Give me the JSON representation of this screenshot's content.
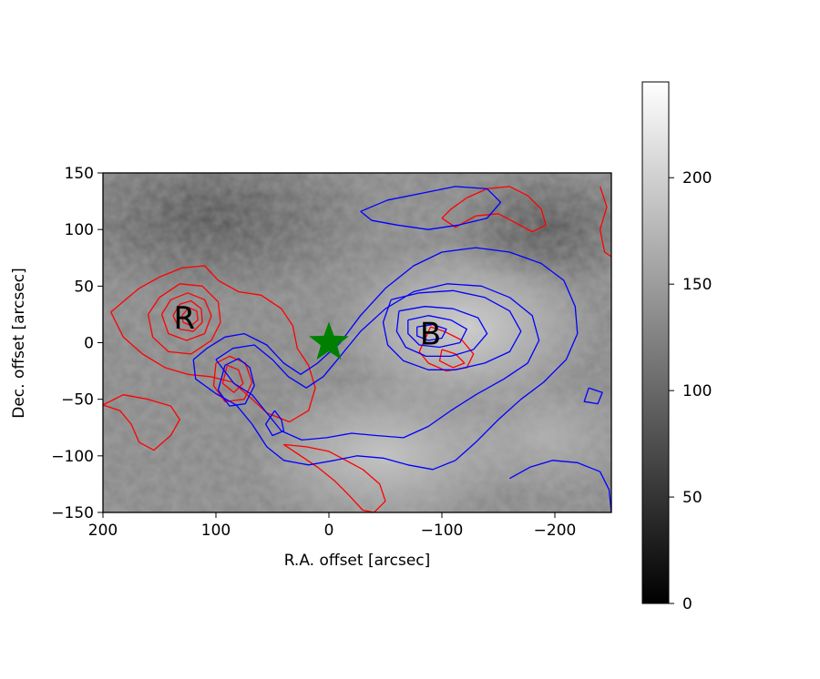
{
  "chart_data": {
    "type": "heatmap",
    "title": "",
    "xlabel": "R.A. offset [arcsec]",
    "ylabel": "Dec. offset [arcsec]",
    "xlim": [
      200,
      -250
    ],
    "ylim": [
      -150,
      150
    ],
    "x_ticks": [
      200,
      100,
      0,
      -100,
      -200
    ],
    "y_ticks": [
      -150,
      -100,
      -50,
      0,
      50,
      100,
      150
    ],
    "x_tick_labels": [
      "200",
      "100",
      "0",
      "−100",
      "−200"
    ],
    "y_tick_labels": [
      "−150",
      "−100",
      "−50",
      "0",
      "50",
      "100",
      "150"
    ],
    "colormap": "gray",
    "colorbar": {
      "range": [
        0,
        245
      ],
      "ticks": [
        0,
        50,
        100,
        150,
        200
      ],
      "tick_labels": [
        "0",
        "50",
        "100",
        "150",
        "200"
      ]
    },
    "annotations": [
      {
        "text": "R",
        "x": 128,
        "y": 22
      },
      {
        "text": "B",
        "x": -90,
        "y": 8
      }
    ],
    "source_marker": {
      "shape": "star",
      "x": 0,
      "y": 0,
      "color": "#008000"
    },
    "contour_colors": {
      "red": "#ff0000",
      "blue": "#0000ff"
    },
    "red_contours": [
      [
        [
          193,
          27
        ],
        [
          180,
          38
        ],
        [
          168,
          48
        ],
        [
          150,
          58
        ],
        [
          130,
          66
        ],
        [
          110,
          68
        ],
        [
          98,
          55
        ],
        [
          80,
          45
        ],
        [
          60,
          42
        ],
        [
          42,
          30
        ],
        [
          32,
          15
        ],
        [
          28,
          -5
        ],
        [
          18,
          -20
        ],
        [
          12,
          -40
        ],
        [
          18,
          -60
        ],
        [
          35,
          -70
        ],
        [
          55,
          -62
        ],
        [
          70,
          -48
        ],
        [
          85,
          -35
        ],
        [
          105,
          -30
        ],
        [
          125,
          -28
        ],
        [
          145,
          -22
        ],
        [
          165,
          -10
        ],
        [
          182,
          5
        ],
        [
          193,
          27
        ]
      ],
      [
        [
          160,
          25
        ],
        [
          150,
          40
        ],
        [
          132,
          52
        ],
        [
          112,
          50
        ],
        [
          98,
          36
        ],
        [
          96,
          18
        ],
        [
          104,
          2
        ],
        [
          122,
          -10
        ],
        [
          142,
          -8
        ],
        [
          156,
          5
        ],
        [
          160,
          25
        ]
      ],
      [
        [
          148,
          25
        ],
        [
          140,
          38
        ],
        [
          125,
          44
        ],
        [
          110,
          38
        ],
        [
          104,
          24
        ],
        [
          110,
          8
        ],
        [
          126,
          2
        ],
        [
          142,
          8
        ],
        [
          148,
          25
        ]
      ],
      [
        [
          138,
          24
        ],
        [
          132,
          34
        ],
        [
          122,
          37
        ],
        [
          113,
          30
        ],
        [
          112,
          18
        ],
        [
          120,
          10
        ],
        [
          132,
          12
        ],
        [
          138,
          24
        ]
      ],
      [
        [
          130,
          24
        ],
        [
          124,
          31
        ],
        [
          117,
          28
        ],
        [
          116,
          20
        ],
        [
          122,
          15
        ],
        [
          129,
          18
        ],
        [
          130,
          24
        ]
      ],
      [
        [
          100,
          -18
        ],
        [
          88,
          -12
        ],
        [
          74,
          -18
        ],
        [
          68,
          -35
        ],
        [
          75,
          -50
        ],
        [
          92,
          -52
        ],
        [
          102,
          -38
        ],
        [
          100,
          -18
        ]
      ],
      [
        [
          90,
          -20
        ],
        [
          80,
          -24
        ],
        [
          76,
          -36
        ],
        [
          84,
          -44
        ],
        [
          94,
          -36
        ],
        [
          90,
          -20
        ]
      ],
      [
        [
          200,
          -55
        ],
        [
          185,
          -60
        ],
        [
          175,
          -72
        ],
        [
          168,
          -88
        ],
        [
          155,
          -95
        ],
        [
          140,
          -82
        ],
        [
          132,
          -68
        ],
        [
          140,
          -56
        ],
        [
          160,
          -50
        ],
        [
          182,
          -46
        ],
        [
          200,
          -55
        ]
      ],
      [
        [
          40,
          -90
        ],
        [
          28,
          -98
        ],
        [
          10,
          -110
        ],
        [
          -5,
          -122
        ],
        [
          -18,
          -135
        ],
        [
          -30,
          -148
        ],
        [
          -40,
          -150
        ],
        [
          -50,
          -140
        ],
        [
          -45,
          -125
        ],
        [
          -30,
          -112
        ],
        [
          -15,
          -104
        ],
        [
          0,
          -96
        ],
        [
          20,
          -92
        ],
        [
          40,
          -90
        ]
      ],
      [
        [
          -90,
          14
        ],
        [
          -102,
          10
        ],
        [
          -118,
          2
        ],
        [
          -128,
          -10
        ],
        [
          -122,
          -22
        ],
        [
          -104,
          -25
        ],
        [
          -88,
          -18
        ],
        [
          -80,
          -8
        ],
        [
          -90,
          14
        ]
      ],
      [
        [
          -100,
          -6
        ],
        [
          -112,
          -10
        ],
        [
          -120,
          -18
        ],
        [
          -110,
          -22
        ],
        [
          -98,
          -16
        ],
        [
          -100,
          -6
        ]
      ],
      [
        [
          -100,
          110
        ],
        [
          -108,
          118
        ],
        [
          -122,
          128
        ],
        [
          -140,
          136
        ],
        [
          -160,
          138
        ],
        [
          -176,
          130
        ],
        [
          -188,
          118
        ],
        [
          -192,
          104
        ],
        [
          -180,
          98
        ],
        [
          -165,
          106
        ],
        [
          -150,
          114
        ],
        [
          -130,
          112
        ],
        [
          -112,
          102
        ],
        [
          -100,
          110
        ]
      ],
      [
        [
          -240,
          138
        ],
        [
          -246,
          120
        ],
        [
          -240,
          100
        ],
        [
          -244,
          80
        ],
        [
          -250,
          76
        ]
      ]
    ],
    "blue_contours": [
      [
        [
          120,
          -15
        ],
        [
          108,
          -5
        ],
        [
          92,
          5
        ],
        [
          75,
          8
        ],
        [
          55,
          -2
        ],
        [
          40,
          -18
        ],
        [
          25,
          -28
        ],
        [
          10,
          -18
        ],
        [
          -10,
          0
        ],
        [
          -28,
          24
        ],
        [
          -50,
          48
        ],
        [
          -75,
          68
        ],
        [
          -100,
          80
        ],
        [
          -130,
          84
        ],
        [
          -160,
          80
        ],
        [
          -188,
          70
        ],
        [
          -208,
          55
        ],
        [
          -218,
          32
        ],
        [
          -220,
          8
        ],
        [
          -210,
          -15
        ],
        [
          -190,
          -35
        ],
        [
          -170,
          -50
        ],
        [
          -150,
          -68
        ],
        [
          -130,
          -88
        ],
        [
          -112,
          -104
        ],
        [
          -92,
          -112
        ],
        [
          -70,
          -108
        ],
        [
          -48,
          -102
        ],
        [
          -25,
          -100
        ],
        [
          -5,
          -104
        ],
        [
          18,
          -108
        ],
        [
          40,
          -104
        ],
        [
          55,
          -92
        ],
        [
          68,
          -72
        ],
        [
          82,
          -55
        ],
        [
          100,
          -45
        ],
        [
          118,
          -32
        ],
        [
          120,
          -15
        ]
      ],
      [
        [
          100,
          -15
        ],
        [
          85,
          -5
        ],
        [
          66,
          -2
        ],
        [
          50,
          -15
        ],
        [
          36,
          -30
        ],
        [
          20,
          -40
        ],
        [
          5,
          -30
        ],
        [
          -10,
          -12
        ],
        [
          -28,
          10
        ],
        [
          -50,
          30
        ],
        [
          -75,
          45
        ],
        [
          -105,
          52
        ],
        [
          -135,
          50
        ],
        [
          -160,
          40
        ],
        [
          -180,
          24
        ],
        [
          -186,
          2
        ],
        [
          -176,
          -18
        ],
        [
          -155,
          -32
        ],
        [
          -130,
          -46
        ],
        [
          -108,
          -60
        ],
        [
          -88,
          -74
        ],
        [
          -66,
          -84
        ],
        [
          -42,
          -82
        ],
        [
          -20,
          -80
        ],
        [
          2,
          -84
        ],
        [
          24,
          -86
        ],
        [
          42,
          -78
        ],
        [
          55,
          -62
        ],
        [
          68,
          -46
        ],
        [
          84,
          -36
        ],
        [
          100,
          -15
        ]
      ],
      [
        [
          -55,
          38
        ],
        [
          -80,
          44
        ],
        [
          -110,
          46
        ],
        [
          -138,
          40
        ],
        [
          -160,
          28
        ],
        [
          -170,
          10
        ],
        [
          -160,
          -8
        ],
        [
          -138,
          -18
        ],
        [
          -112,
          -24
        ],
        [
          -88,
          -24
        ],
        [
          -66,
          -16
        ],
        [
          -52,
          -2
        ],
        [
          -48,
          18
        ],
        [
          -55,
          38
        ]
      ],
      [
        [
          -62,
          28
        ],
        [
          -85,
          32
        ],
        [
          -110,
          30
        ],
        [
          -132,
          22
        ],
        [
          -140,
          8
        ],
        [
          -128,
          -6
        ],
        [
          -108,
          -12
        ],
        [
          -86,
          -12
        ],
        [
          -68,
          -4
        ],
        [
          -60,
          10
        ],
        [
          -62,
          28
        ]
      ],
      [
        [
          -70,
          20
        ],
        [
          -88,
          24
        ],
        [
          -108,
          20
        ],
        [
          -122,
          12
        ],
        [
          -116,
          0
        ],
        [
          -98,
          -4
        ],
        [
          -80,
          -2
        ],
        [
          -70,
          8
        ],
        [
          -70,
          20
        ]
      ],
      [
        [
          -78,
          14
        ],
        [
          -92,
          16
        ],
        [
          -104,
          12
        ],
        [
          -100,
          4
        ],
        [
          -88,
          2
        ],
        [
          -78,
          6
        ],
        [
          -78,
          14
        ]
      ],
      [
        [
          92,
          -20
        ],
        [
          80,
          -14
        ],
        [
          70,
          -22
        ],
        [
          66,
          -38
        ],
        [
          74,
          -54
        ],
        [
          88,
          -56
        ],
        [
          98,
          -42
        ],
        [
          92,
          -20
        ]
      ],
      [
        [
          48,
          -60
        ],
        [
          42,
          -68
        ],
        [
          40,
          -78
        ],
        [
          50,
          -82
        ],
        [
          56,
          -72
        ],
        [
          48,
          -60
        ]
      ],
      [
        [
          -28,
          116
        ],
        [
          -52,
          126
        ],
        [
          -82,
          132
        ],
        [
          -112,
          138
        ],
        [
          -140,
          136
        ],
        [
          -152,
          124
        ],
        [
          -140,
          110
        ],
        [
          -115,
          104
        ],
        [
          -88,
          100
        ],
        [
          -60,
          104
        ],
        [
          -38,
          108
        ],
        [
          -28,
          116
        ]
      ],
      [
        [
          -160,
          -120
        ],
        [
          -178,
          -110
        ],
        [
          -198,
          -104
        ],
        [
          -220,
          -106
        ],
        [
          -240,
          -114
        ],
        [
          -248,
          -130
        ],
        [
          -250,
          -150
        ]
      ],
      [
        [
          -230,
          -40
        ],
        [
          -242,
          -44
        ],
        [
          -238,
          -54
        ],
        [
          -226,
          -52
        ],
        [
          -230,
          -40
        ]
      ]
    ]
  }
}
